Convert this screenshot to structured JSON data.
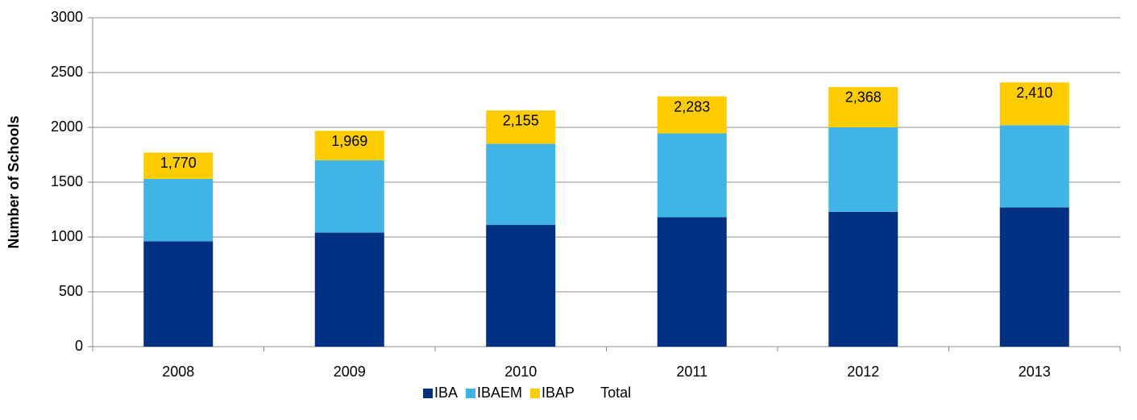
{
  "chart_data": {
    "type": "stacked_bar",
    "y_label": "Number of Schools",
    "categories": [
      "2008",
      "2009",
      "2010",
      "2011",
      "2012",
      "2013"
    ],
    "series": [
      {
        "name": "IBA",
        "color": "#003082",
        "values": [
          960,
          1040,
          1110,
          1180,
          1230,
          1270
        ]
      },
      {
        "name": "IBAEM",
        "color": "#41b4e6",
        "values": [
          570,
          660,
          740,
          765,
          770,
          750
        ]
      },
      {
        "name": "IBAP",
        "color": "#ffcc00",
        "values": [
          240,
          269,
          305,
          338,
          368,
          390
        ]
      },
      {
        "name": "Total",
        "values": [
          1770,
          1969,
          2155,
          2283,
          2368,
          2410
        ],
        "value_labels": [
          "1,770",
          "1,969",
          "2,155",
          "2,283",
          "2,368",
          "2,410"
        ]
      }
    ],
    "ylim": [
      0,
      3000
    ],
    "yticks": [
      0,
      500,
      1000,
      1500,
      2000,
      2500,
      3000
    ],
    "grid": true,
    "legend": "bottom"
  }
}
